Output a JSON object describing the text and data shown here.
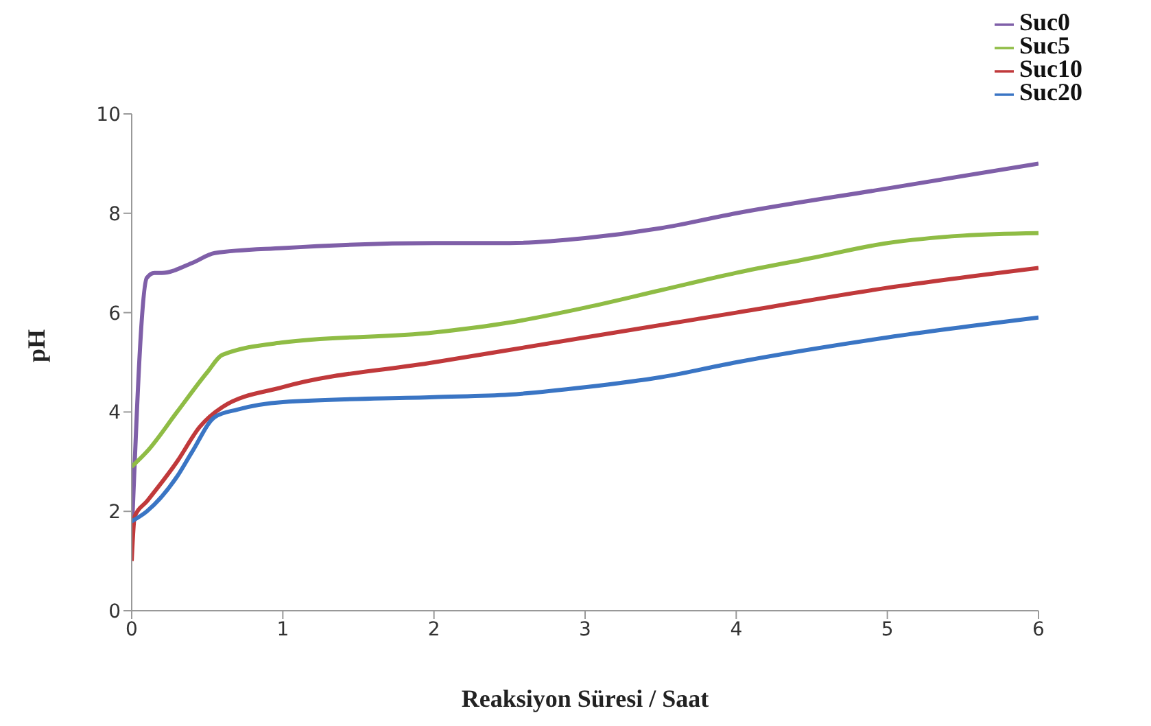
{
  "chart_data": {
    "type": "line",
    "xlabel": "Reaksiyon Süresi / Saat",
    "ylabel": "pH",
    "xlim": [
      0,
      6
    ],
    "xticks": [
      0,
      1,
      2,
      3,
      4,
      5,
      6
    ],
    "ylim": [
      0,
      10
    ],
    "yticks": [
      0,
      2,
      4,
      6,
      8,
      10
    ],
    "grid": false,
    "legend": "top right",
    "marker": "none",
    "line_style": "solid",
    "series": [
      {
        "name": "Suc0",
        "color": "#7f5fa8",
        "x": [
          0,
          0.1,
          0.15,
          0.2,
          0.4,
          0.55,
          1,
          2,
          2.5,
          3,
          3.5,
          4,
          5,
          6
        ],
        "values": [
          1.5,
          6.7,
          6.8,
          6.8,
          7.0,
          7.2,
          7.3,
          7.4,
          7.4,
          7.5,
          7.7,
          8.0,
          8.5,
          9.0
        ]
      },
      {
        "name": "Suc5",
        "color": "#8fbc45",
        "x": [
          0,
          0.1,
          0.3,
          0.5,
          0.6,
          1,
          2,
          2.5,
          3,
          3.5,
          4,
          4.5,
          5,
          5.5,
          6
        ],
        "values": [
          2.9,
          3.2,
          4.0,
          4.8,
          5.15,
          5.4,
          5.6,
          5.8,
          6.1,
          6.45,
          6.8,
          7.1,
          7.4,
          7.55,
          7.6
        ]
      },
      {
        "name": "Suc10",
        "color": "#c0393b",
        "x": [
          0,
          0.02,
          0.1,
          0.3,
          0.45,
          0.6,
          1,
          2,
          3,
          4,
          5,
          6
        ],
        "values": [
          1.0,
          1.9,
          2.2,
          3.0,
          3.7,
          4.1,
          4.5,
          5.0,
          5.5,
          6.0,
          6.5,
          6.9
        ]
      },
      {
        "name": "Suc20",
        "color": "#3a75c4",
        "x": [
          0,
          0.1,
          0.3,
          0.4,
          0.55,
          0.7,
          1,
          2,
          2.5,
          3,
          3.5,
          4,
          5,
          6
        ],
        "values": [
          1.8,
          2.0,
          2.7,
          3.2,
          3.9,
          4.05,
          4.2,
          4.3,
          4.35,
          4.5,
          4.7,
          5.0,
          5.5,
          5.9
        ]
      }
    ]
  }
}
